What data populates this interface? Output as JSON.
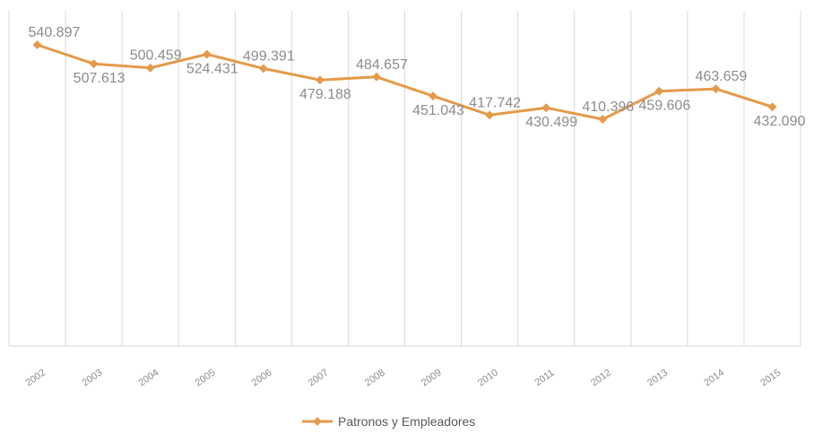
{
  "chart_data": {
    "type": "line",
    "categories": [
      "2002",
      "2003",
      "2004",
      "2005",
      "2006",
      "2007",
      "2008",
      "2009",
      "2010",
      "2011",
      "2012",
      "2013",
      "2014",
      "2015"
    ],
    "series": [
      {
        "name": "Patronos y Empleadores",
        "values": [
          540897,
          507613,
          500459,
          524431,
          499391,
          479188,
          484657,
          451043,
          417742,
          430499,
          410396,
          459606,
          463659,
          432090
        ],
        "labels": [
          "540.897",
          "507.613",
          "500.459",
          "524.431",
          "499.391",
          "479.188",
          "484.657",
          "451.043",
          "417.742",
          "430.499",
          "410.396",
          "459.606",
          "463.659",
          "432.090"
        ]
      }
    ],
    "xlabel": "",
    "ylabel": "",
    "ylim": [
      0,
      560000
    ],
    "grid": "vertical",
    "legend": "bottom",
    "colors": {
      "series": "#e59a4a",
      "grid": "#d9d9d9",
      "text": "#8c8c8c"
    }
  }
}
